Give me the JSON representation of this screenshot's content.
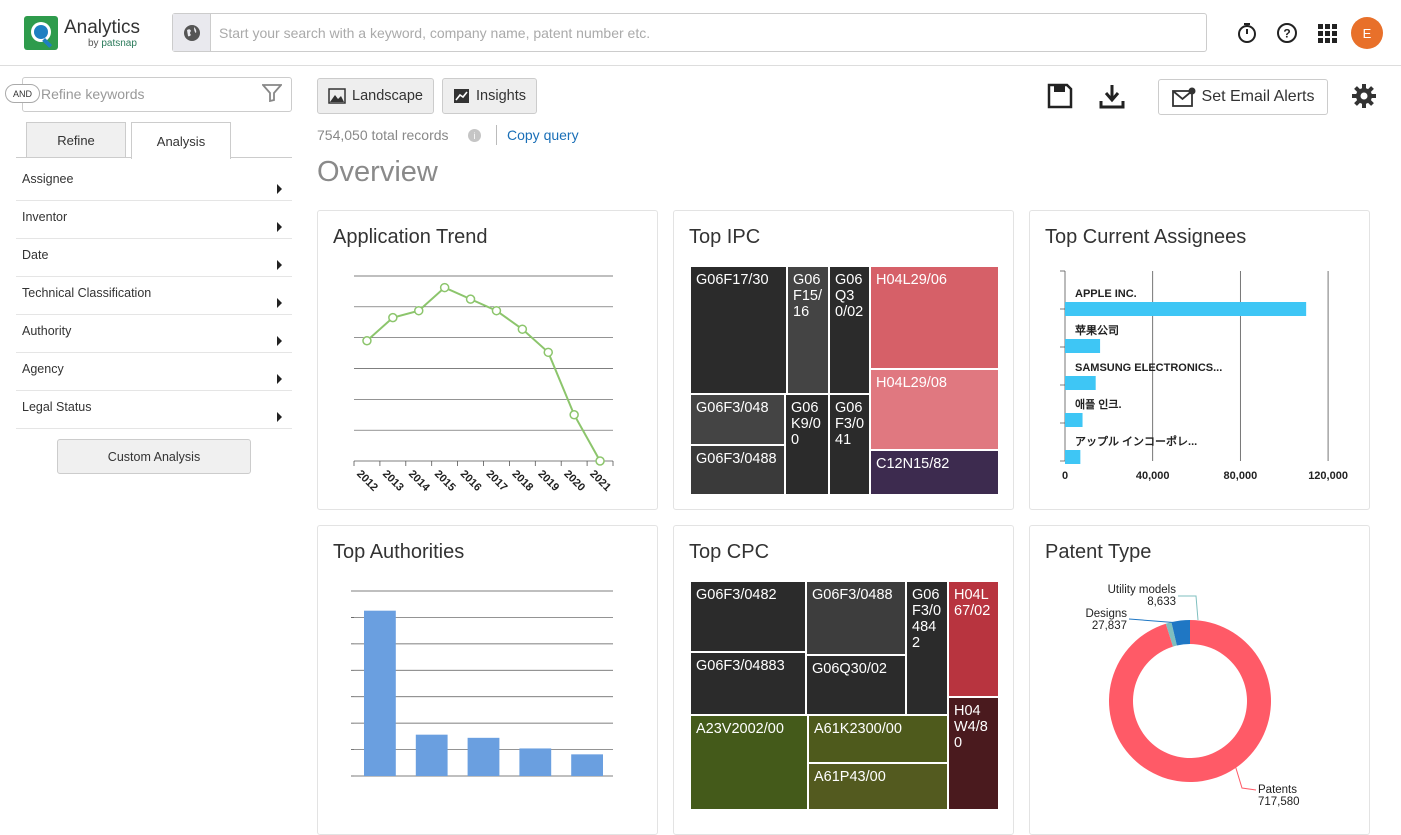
{
  "app": {
    "title": "Analytics",
    "subtitle_prefix": "by",
    "subtitle_brand": "patsnap",
    "search_placeholder": "Start your search with a keyword, company name, patent number etc.",
    "avatar_initial": "E"
  },
  "sidebar": {
    "and_label": "AND",
    "refine_placeholder": "Refine keywords",
    "tabs": [
      "Refine",
      "Analysis"
    ],
    "active_tab": "Analysis",
    "items": [
      "Assignee",
      "Inventor",
      "Date",
      "Technical Classification",
      "Authority",
      "Agency",
      "Legal Status"
    ],
    "custom_button": "Custom Analysis"
  },
  "toolbar": {
    "landscape": "Landscape",
    "insights": "Insights",
    "email_alerts": "Set Email Alerts",
    "records": "754,050 total records",
    "copy_query": "Copy query",
    "overview": "Overview"
  },
  "cards": {
    "application_trend": "Application Trend",
    "top_ipc": "Top IPC",
    "top_assignees": "Top Current Assignees",
    "top_authorities": "Top Authorities",
    "top_cpc": "Top CPC",
    "patent_type": "Patent Type"
  },
  "chart_data": [
    {
      "type": "line",
      "title": "Application Trend",
      "x": [
        "2012",
        "2013",
        "2014",
        "2015",
        "2016",
        "2017",
        "2018",
        "2019",
        "2020",
        "2021"
      ],
      "y": [
        52000,
        62000,
        65000,
        75000,
        70000,
        65000,
        57000,
        47000,
        20000,
        0
      ],
      "ylim": [
        0,
        80000
      ],
      "grid": true,
      "color": "#8cc56c"
    },
    {
      "type": "treemap",
      "title": "Top IPC",
      "cells": [
        "G06F17/30",
        "G06F15/16",
        "G06Q30/02",
        "H04L29/06",
        "G06F3/048",
        "G06K9/00",
        "G06F3/041",
        "H04L29/08",
        "G06F3/0488",
        "C12N15/82"
      ],
      "colors": {
        "dark": "#2b2b2b",
        "mid": "#444444",
        "red": "#d66068",
        "pink": "#e07880",
        "purple": "#3d2b4f"
      }
    },
    {
      "type": "bar",
      "orientation": "horizontal",
      "title": "Top Current Assignees",
      "categories": [
        "APPLE INC.",
        "苹果公司",
        "SAMSUNG ELECTRONICS...",
        "애플 인크.",
        "アップル インコーポレ..."
      ],
      "values": [
        110000,
        16000,
        14000,
        8000,
        7000
      ],
      "xticks": [
        "0",
        "40,000",
        "80,000",
        "120,000"
      ],
      "xlim": [
        0,
        130000
      ],
      "color": "#3ec6f5"
    },
    {
      "type": "bar",
      "title": "Top Authorities",
      "categories": [
        "",
        "",
        "",
        "",
        ""
      ],
      "values": [
        420000,
        105000,
        97000,
        70000,
        55000
      ],
      "ylim": [
        0,
        470000
      ],
      "color": "#6a9fe0"
    },
    {
      "type": "treemap",
      "title": "Top CPC",
      "cells": [
        "G06F3/0482",
        "G06F3/0488",
        "G06F3/04842",
        "H04L67/02",
        "G06F3/04883",
        "G06Q30/02",
        "A23V2002/00",
        "A61K2300/00",
        "H04W4/80",
        "A61P43/00"
      ],
      "colors": {
        "dark": "#2b2b2b",
        "mid": "#3d3d3d",
        "red": "#b8343f",
        "darkred": "#4a1a1e",
        "olive": "#445a1a",
        "olive2": "#535a1f"
      }
    },
    {
      "type": "pie",
      "title": "Patent Type",
      "slices": [
        {
          "label": "Patents",
          "value": 717580,
          "display": "717,580",
          "color": "#ff5a67"
        },
        {
          "label": "Designs",
          "value": 27837,
          "display": "27,837",
          "color": "#1f77c4"
        },
        {
          "label": "Utility models",
          "value": 8633,
          "display": "8,633",
          "color": "#7fbfbf"
        }
      ]
    }
  ]
}
